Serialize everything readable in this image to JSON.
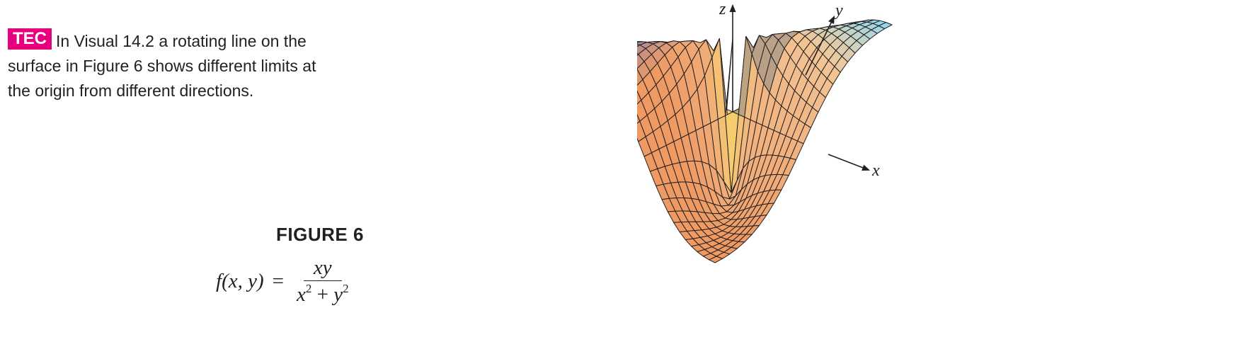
{
  "tec_note": {
    "badge": "TEC",
    "text": "In Visual 14.2 a rotating line on the surface in Figure 6 shows different limits at the origin from different directions."
  },
  "figure": {
    "label": "FIGURE 6",
    "formula": {
      "lhs_fn": "f",
      "lhs_args": "(x, y)",
      "equals": "=",
      "numerator": "xy",
      "den_x": "x",
      "den_exp1": "2",
      "den_plus": "+",
      "den_y": "y",
      "den_exp2": "2"
    }
  },
  "plot": {
    "axes": {
      "x": "x",
      "y": "y",
      "z": "z"
    },
    "function": "xy/(x^2+y^2)",
    "colors": {
      "blue": "#6f7bbd",
      "green": "#3fae7a",
      "skyblue": "#8fd6ef",
      "cream": "#f6f0c8",
      "orange": "#ef9a63",
      "yellow": "#f7d46a",
      "grey": "#8d8a86",
      "mesh": "#231f20"
    }
  }
}
